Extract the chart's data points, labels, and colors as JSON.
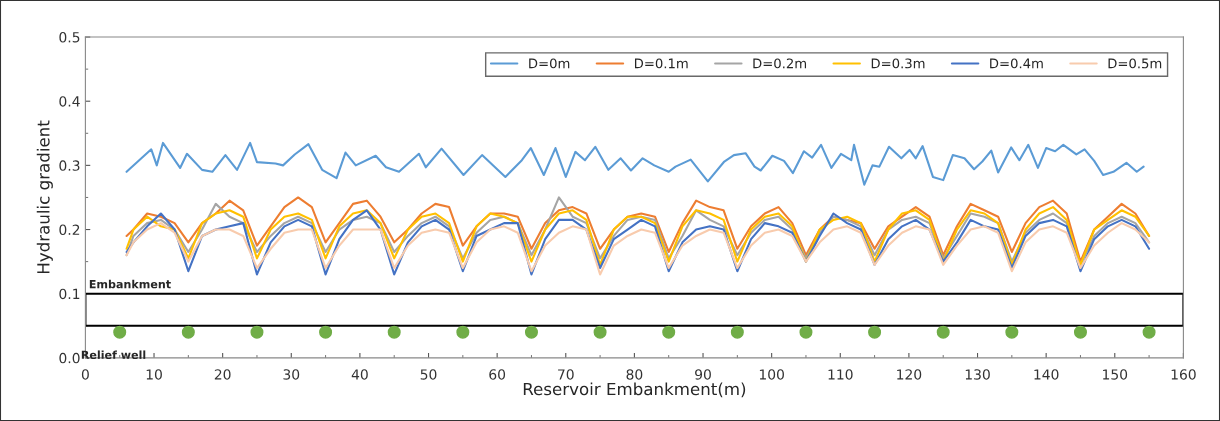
{
  "chart_data": {
    "type": "line",
    "xlabel": "Reservoir Embankment(m)",
    "ylabel": "Hydraulic gradient",
    "xlim": [
      0,
      160
    ],
    "xticks": [
      0,
      10,
      20,
      30,
      40,
      50,
      60,
      70,
      80,
      90,
      100,
      110,
      120,
      130,
      140,
      150,
      160
    ],
    "ylim": [
      0,
      0.5
    ],
    "yticks": [
      {
        "value": 0,
        "label": "0.0"
      },
      0.1,
      0.2,
      0.3,
      0.4,
      0.5
    ],
    "grid": false,
    "legend": "top right",
    "marker": "none",
    "line_style": "solid",
    "x": [
      6,
      7,
      9,
      11,
      13,
      15,
      17,
      19,
      21,
      23,
      25,
      27,
      29,
      31,
      33,
      35,
      37,
      39,
      41,
      43,
      45,
      47,
      49,
      51,
      53,
      55,
      57,
      59,
      61,
      63,
      65,
      67,
      69,
      71,
      73,
      75,
      77,
      79,
      81,
      83,
      85,
      87,
      89,
      91,
      93,
      95,
      97,
      99,
      101,
      103,
      105,
      107,
      109,
      111,
      113,
      115,
      117,
      119,
      121,
      123,
      125,
      127,
      129,
      131,
      133,
      135,
      137,
      139,
      141,
      143,
      145,
      147,
      149,
      151,
      153,
      155
    ],
    "bands": [
      {
        "axis": "y",
        "from": 0.05,
        "to": 0.1,
        "label": "Embankment",
        "color": "#000000"
      }
    ],
    "series": [
      {
        "name": "D=0m",
        "color": "#5b9bd5",
        "x": [
          6.0,
          9.6,
          10.4,
          11.3,
          13.8,
          14.8,
          17,
          18.5,
          20.4,
          22.1,
          24.0,
          25,
          27.7,
          28.8,
          30.5,
          32.5,
          34.5,
          36.6,
          37.9,
          39.4,
          42.3,
          43.8,
          45.7,
          48.6,
          49.6,
          51.9,
          55.1,
          57.8,
          61.2,
          63.6,
          64.9,
          66.8,
          68.5,
          70.0,
          71.4,
          72.8,
          74.3,
          76.2,
          78.0,
          79.5,
          81.2,
          82.9,
          85.0,
          86.0,
          88.2,
          90.7,
          93.1,
          94.5,
          96.2,
          97.5,
          98.4,
          100.1,
          101.8,
          103.1,
          104.7,
          105.9,
          107.2,
          108.7,
          110.1,
          111.6,
          112.0,
          113.5,
          114.7,
          115.7,
          117.1,
          118.9,
          120.1,
          121.0,
          122.0,
          123.5,
          125.0,
          126.4,
          128.1,
          129.5,
          130.7,
          132.0,
          133.0,
          134.9,
          136.1,
          137.4,
          138.8,
          140.0,
          141.3,
          142.5,
          144.4,
          145.6,
          147.0,
          148.3,
          149.8,
          151.7,
          153.2,
          154.2
        ],
        "values": [
          0.29,
          0.325,
          0.3,
          0.335,
          0.296,
          0.318,
          0.293,
          0.29,
          0.316,
          0.293,
          0.335,
          0.305,
          0.303,
          0.3,
          0.317,
          0.333,
          0.293,
          0.28,
          0.32,
          0.3,
          0.315,
          0.297,
          0.29,
          0.318,
          0.297,
          0.326,
          0.285,
          0.316,
          0.282,
          0.308,
          0.327,
          0.285,
          0.327,
          0.282,
          0.321,
          0.308,
          0.329,
          0.293,
          0.311,
          0.292,
          0.311,
          0.3,
          0.29,
          0.298,
          0.309,
          0.275,
          0.306,
          0.316,
          0.319,
          0.298,
          0.292,
          0.315,
          0.307,
          0.288,
          0.322,
          0.312,
          0.332,
          0.296,
          0.318,
          0.308,
          0.332,
          0.27,
          0.3,
          0.298,
          0.329,
          0.311,
          0.324,
          0.311,
          0.33,
          0.282,
          0.277,
          0.316,
          0.311,
          0.294,
          0.306,
          0.323,
          0.289,
          0.328,
          0.308,
          0.332,
          0.296,
          0.327,
          0.322,
          0.332,
          0.317,
          0.325,
          0.307,
          0.285,
          0.29,
          0.304,
          0.29,
          0.298
        ]
      },
      {
        "name": "D=0.1m",
        "color": "#ed7d31",
        "values": [
          0.19,
          0.2,
          0.225,
          0.22,
          0.21,
          0.18,
          0.21,
          0.225,
          0.245,
          0.23,
          0.175,
          0.205,
          0.235,
          0.25,
          0.235,
          0.18,
          0.21,
          0.24,
          0.245,
          0.22,
          0.18,
          0.2,
          0.225,
          0.24,
          0.235,
          0.175,
          0.205,
          0.225,
          0.225,
          0.22,
          0.17,
          0.21,
          0.23,
          0.235,
          0.225,
          0.17,
          0.2,
          0.22,
          0.225,
          0.22,
          0.165,
          0.21,
          0.245,
          0.235,
          0.23,
          0.17,
          0.205,
          0.225,
          0.235,
          0.21,
          0.16,
          0.2,
          0.22,
          0.215,
          0.21,
          0.17,
          0.205,
          0.22,
          0.235,
          0.22,
          0.16,
          0.205,
          0.24,
          0.23,
          0.22,
          0.165,
          0.21,
          0.235,
          0.245,
          0.225,
          0.15,
          0.2,
          0.22,
          0.24,
          0.225,
          0.19
        ]
      },
      {
        "name": "D=0.2m",
        "color": "#a5a5a5",
        "values": [
          0.16,
          0.19,
          0.21,
          0.215,
          0.2,
          0.165,
          0.2,
          0.24,
          0.22,
          0.21,
          0.165,
          0.19,
          0.21,
          0.22,
          0.21,
          0.165,
          0.2,
          0.215,
          0.22,
          0.21,
          0.165,
          0.19,
          0.21,
          0.22,
          0.205,
          0.155,
          0.195,
          0.215,
          0.22,
          0.21,
          0.16,
          0.2,
          0.25,
          0.22,
          0.21,
          0.155,
          0.19,
          0.215,
          0.22,
          0.215,
          0.155,
          0.19,
          0.23,
          0.215,
          0.205,
          0.16,
          0.195,
          0.215,
          0.22,
          0.2,
          0.155,
          0.195,
          0.22,
          0.215,
          0.205,
          0.16,
          0.2,
          0.215,
          0.22,
          0.21,
          0.155,
          0.19,
          0.225,
          0.22,
          0.21,
          0.15,
          0.195,
          0.215,
          0.225,
          0.21,
          0.145,
          0.19,
          0.21,
          0.22,
          0.21,
          0.18
        ]
      },
      {
        "name": "D=0.3m",
        "color": "#ffc000",
        "values": [
          0.17,
          0.2,
          0.22,
          0.205,
          0.2,
          0.155,
          0.21,
          0.225,
          0.23,
          0.22,
          0.155,
          0.2,
          0.22,
          0.225,
          0.215,
          0.155,
          0.205,
          0.225,
          0.23,
          0.21,
          0.155,
          0.2,
          0.22,
          0.225,
          0.21,
          0.15,
          0.205,
          0.225,
          0.22,
          0.21,
          0.15,
          0.2,
          0.225,
          0.23,
          0.215,
          0.145,
          0.2,
          0.22,
          0.22,
          0.21,
          0.15,
          0.205,
          0.23,
          0.225,
          0.215,
          0.15,
          0.2,
          0.22,
          0.225,
          0.205,
          0.15,
          0.2,
          0.215,
          0.22,
          0.21,
          0.15,
          0.2,
          0.225,
          0.23,
          0.215,
          0.15,
          0.2,
          0.23,
          0.225,
          0.21,
          0.145,
          0.2,
          0.225,
          0.235,
          0.215,
          0.145,
          0.2,
          0.215,
          0.23,
          0.22,
          0.19
        ]
      },
      {
        "name": "D=0.4m",
        "color": "#4472c4",
        "values": [
          0.165,
          0.18,
          0.205,
          0.225,
          0.2,
          0.135,
          0.19,
          0.2,
          0.205,
          0.21,
          0.13,
          0.18,
          0.205,
          0.215,
          0.205,
          0.13,
          0.185,
          0.215,
          0.23,
          0.2,
          0.13,
          0.18,
          0.205,
          0.215,
          0.2,
          0.135,
          0.19,
          0.2,
          0.21,
          0.21,
          0.13,
          0.185,
          0.215,
          0.215,
          0.2,
          0.14,
          0.185,
          0.2,
          0.215,
          0.205,
          0.135,
          0.18,
          0.2,
          0.205,
          0.2,
          0.135,
          0.185,
          0.21,
          0.205,
          0.195,
          0.15,
          0.19,
          0.225,
          0.21,
          0.2,
          0.145,
          0.185,
          0.205,
          0.215,
          0.2,
          0.15,
          0.18,
          0.215,
          0.205,
          0.2,
          0.14,
          0.19,
          0.21,
          0.215,
          0.205,
          0.135,
          0.185,
          0.205,
          0.215,
          0.205,
          0.17
        ]
      },
      {
        "name": "D=0.5m",
        "color": "#f8cbad",
        "values": [
          0.16,
          0.18,
          0.2,
          0.21,
          0.195,
          0.15,
          0.19,
          0.2,
          0.2,
          0.19,
          0.14,
          0.17,
          0.195,
          0.2,
          0.2,
          0.14,
          0.175,
          0.2,
          0.2,
          0.2,
          0.14,
          0.175,
          0.195,
          0.2,
          0.195,
          0.14,
          0.18,
          0.2,
          0.205,
          0.195,
          0.135,
          0.175,
          0.195,
          0.205,
          0.2,
          0.13,
          0.175,
          0.19,
          0.2,
          0.195,
          0.14,
          0.175,
          0.19,
          0.2,
          0.195,
          0.14,
          0.175,
          0.195,
          0.2,
          0.19,
          0.15,
          0.18,
          0.2,
          0.205,
          0.195,
          0.145,
          0.175,
          0.195,
          0.205,
          0.2,
          0.145,
          0.175,
          0.2,
          0.205,
          0.195,
          0.135,
          0.18,
          0.2,
          0.205,
          0.195,
          0.14,
          0.175,
          0.195,
          0.21,
          0.2,
          0.18
        ]
      },
      {
        "name": "Relief well",
        "type": "scatter",
        "marker": "circle",
        "color": "#70ad47",
        "x": [
          5,
          15,
          25,
          35,
          45,
          55,
          65,
          75,
          85,
          95,
          105,
          115,
          125,
          135,
          145,
          155
        ],
        "values": [
          0.04,
          0.04,
          0.04,
          0.04,
          0.04,
          0.04,
          0.04,
          0.04,
          0.04,
          0.04,
          0.04,
          0.04,
          0.04,
          0.04,
          0.04,
          0.04
        ]
      }
    ]
  }
}
